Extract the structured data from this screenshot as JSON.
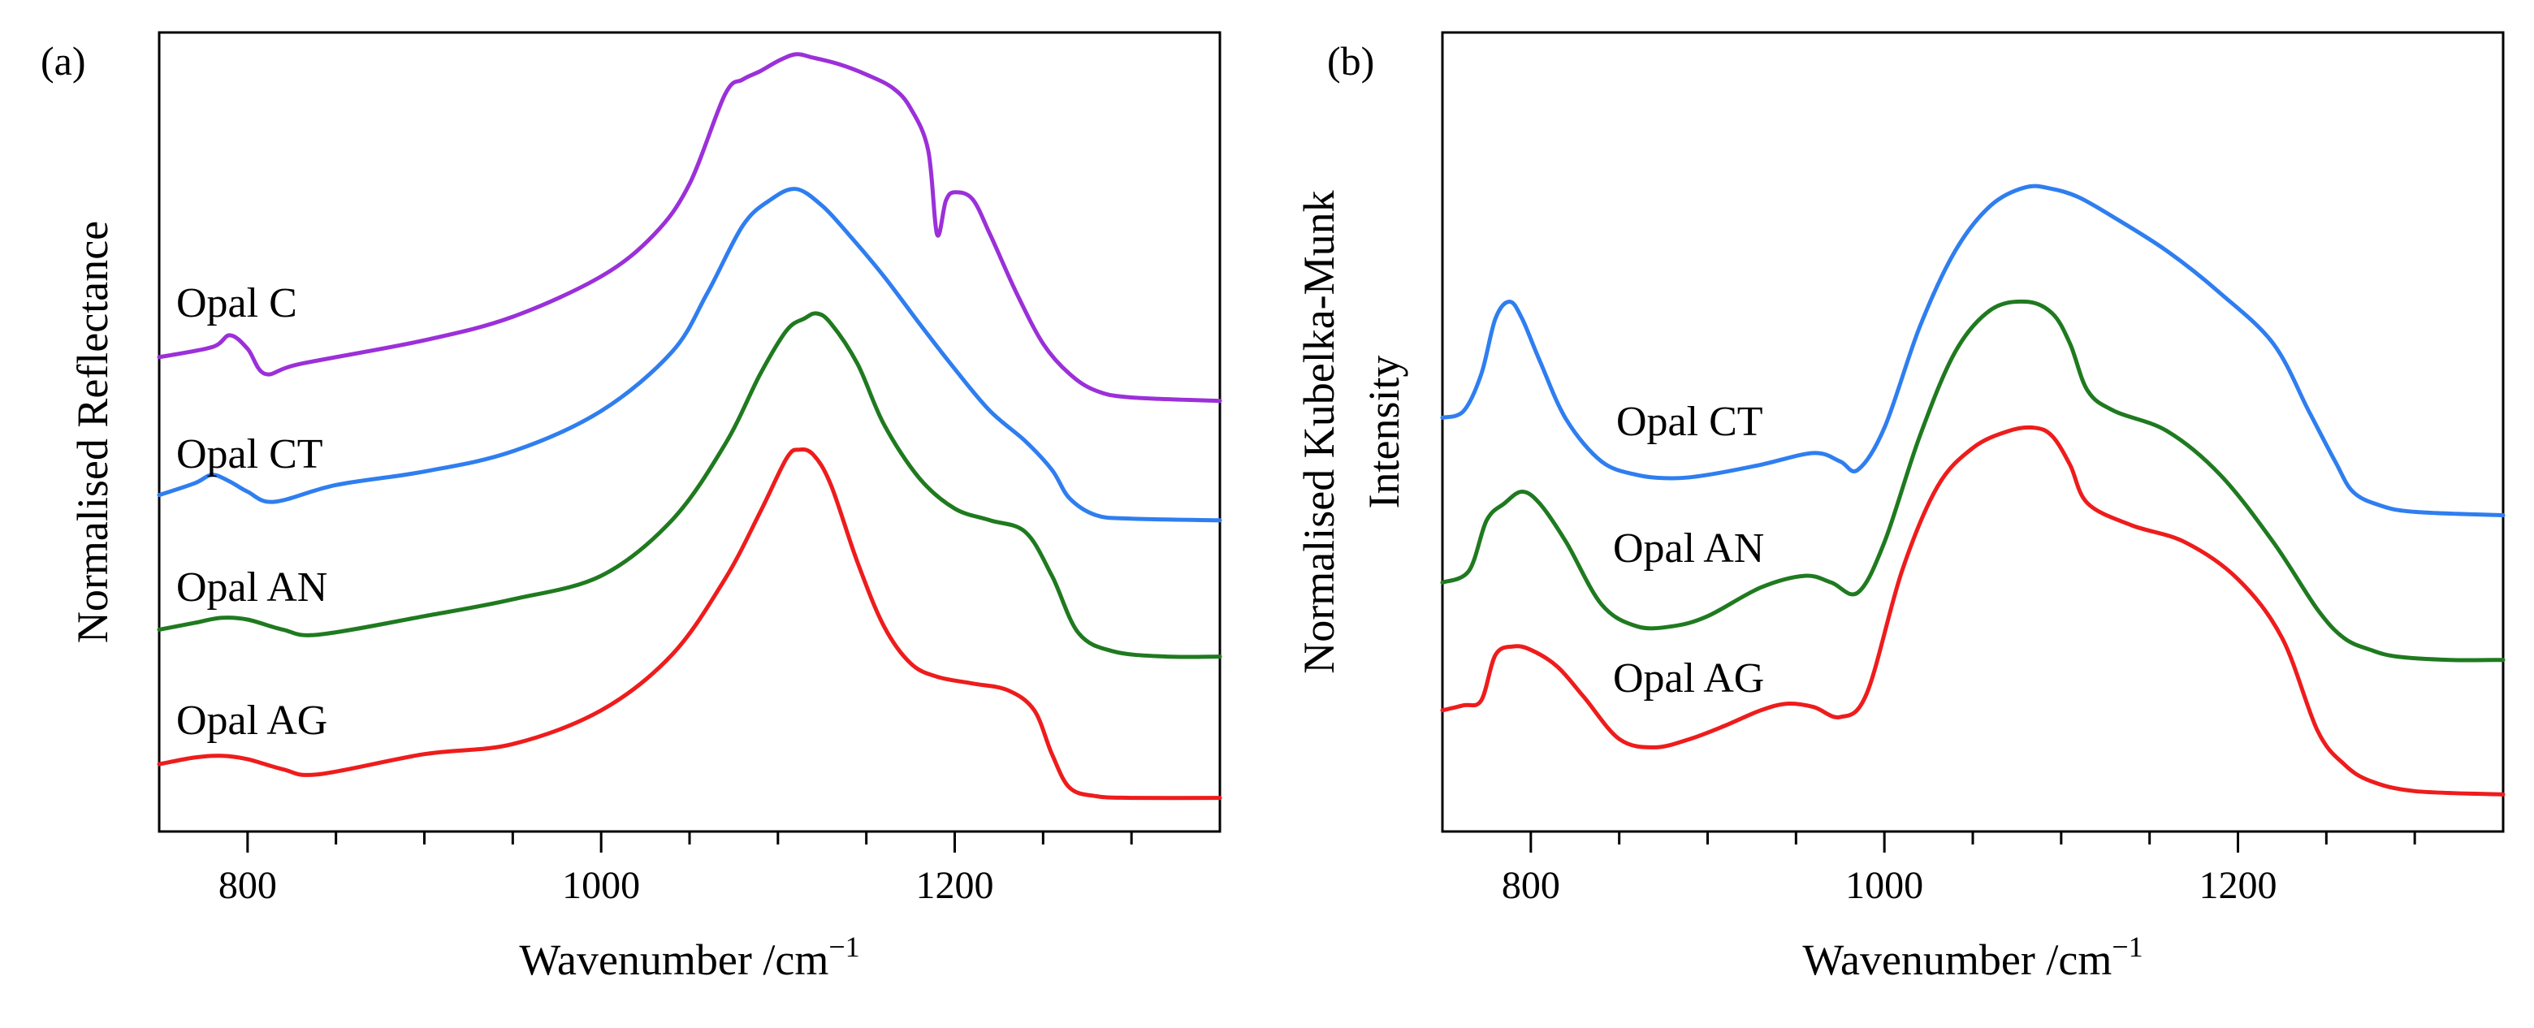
{
  "figure": {
    "panels": [
      {
        "label": "(a)",
        "ylabel": "Normalised Reflectance"
      },
      {
        "label": "(b)",
        "ylabel_lines": [
          "Normalised Kubelka-Munk",
          "Intensity"
        ]
      }
    ],
    "xlabel_main": "Wavenumber /cm",
    "xlabel_sup": "−1"
  },
  "colors": {
    "opal_c": "#9b30d9",
    "opal_ct": "#2f7ef0",
    "opal_an": "#1f7a1f",
    "opal_ag": "#ee1c1c"
  },
  "chart_data": [
    {
      "type": "line",
      "panel": "(a)",
      "title": "",
      "xlabel": "Wavenumber /cm−1",
      "ylabel": "Normalised Reflectance",
      "xlim": [
        750,
        1350
      ],
      "ylim": [
        0,
        4.75
      ],
      "xticks": [
        800,
        1000,
        1200
      ],
      "y_ticks_shown": false,
      "legend": "inline labels at left of each curve",
      "series": [
        {
          "name": "Opal C",
          "color_key": "opal_c",
          "x": [
            750,
            780,
            790,
            800,
            810,
            830,
            900,
            950,
            1000,
            1030,
            1050,
            1070,
            1080,
            1090,
            1100,
            1110,
            1120,
            1135,
            1150,
            1165,
            1175,
            1185,
            1190,
            1195,
            1200,
            1210,
            1220,
            1235,
            1250,
            1265,
            1280,
            1300,
            1350
          ],
          "y": [
            2.82,
            2.88,
            2.95,
            2.87,
            2.72,
            2.78,
            2.92,
            3.06,
            3.3,
            3.55,
            3.85,
            4.38,
            4.47,
            4.52,
            4.58,
            4.62,
            4.6,
            4.56,
            4.5,
            4.42,
            4.3,
            4.05,
            3.55,
            3.75,
            3.8,
            3.76,
            3.55,
            3.2,
            2.9,
            2.72,
            2.62,
            2.58,
            2.56
          ]
        },
        {
          "name": "Opal CT",
          "color_key": "opal_ct",
          "x": [
            750,
            770,
            780,
            790,
            800,
            815,
            850,
            900,
            950,
            1000,
            1040,
            1060,
            1080,
            1095,
            1110,
            1125,
            1140,
            1160,
            1180,
            1200,
            1220,
            1240,
            1255,
            1265,
            1280,
            1300,
            1350
          ],
          "y": [
            2.0,
            2.07,
            2.12,
            2.08,
            2.02,
            1.96,
            2.06,
            2.14,
            2.26,
            2.5,
            2.85,
            3.2,
            3.6,
            3.75,
            3.82,
            3.72,
            3.55,
            3.3,
            3.02,
            2.75,
            2.5,
            2.32,
            2.15,
            1.98,
            1.88,
            1.86,
            1.85
          ]
        },
        {
          "name": "Opal AN",
          "color_key": "opal_an",
          "x": [
            750,
            770,
            785,
            800,
            820,
            840,
            900,
            950,
            1000,
            1040,
            1070,
            1090,
            1105,
            1115,
            1122,
            1130,
            1145,
            1160,
            1180,
            1200,
            1220,
            1240,
            1255,
            1270,
            1290,
            1320,
            1350
          ],
          "y": [
            1.2,
            1.24,
            1.27,
            1.26,
            1.2,
            1.17,
            1.28,
            1.38,
            1.52,
            1.85,
            2.3,
            2.72,
            2.98,
            3.05,
            3.08,
            3.02,
            2.78,
            2.42,
            2.1,
            1.92,
            1.85,
            1.78,
            1.52,
            1.18,
            1.07,
            1.04,
            1.04
          ]
        },
        {
          "name": "Opal AG",
          "color_key": "opal_ag",
          "x": [
            750,
            770,
            785,
            800,
            820,
            840,
            900,
            950,
            1000,
            1040,
            1070,
            1090,
            1105,
            1112,
            1120,
            1130,
            1145,
            1160,
            1175,
            1190,
            1210,
            1230,
            1245,
            1255,
            1265,
            1280,
            1300,
            1350
          ],
          "y": [
            0.4,
            0.44,
            0.45,
            0.43,
            0.37,
            0.34,
            0.46,
            0.52,
            0.72,
            1.05,
            1.5,
            1.9,
            2.22,
            2.27,
            2.24,
            2.06,
            1.6,
            1.22,
            1.0,
            0.92,
            0.88,
            0.84,
            0.72,
            0.46,
            0.26,
            0.21,
            0.2,
            0.2
          ]
        }
      ],
      "annotations": [
        "Opal C",
        "Opal CT",
        "Opal AN",
        "Opal AG"
      ]
    },
    {
      "type": "line",
      "panel": "(b)",
      "title": "",
      "xlabel": "Wavenumber /cm−1",
      "ylabel": "Normalised Kubelka-Munk Intensity",
      "xlim": [
        750,
        1350
      ],
      "ylim": [
        0,
        4.75
      ],
      "xticks": [
        800,
        1000,
        1200
      ],
      "y_ticks_shown": false,
      "legend": "inline labels within each curve's valley",
      "series": [
        {
          "name": "Opal CT",
          "color_key": "opal_ct",
          "x": [
            750,
            762,
            772,
            780,
            788,
            795,
            805,
            820,
            840,
            860,
            880,
            900,
            930,
            960,
            975,
            985,
            1000,
            1020,
            1040,
            1060,
            1080,
            1095,
            1110,
            1130,
            1160,
            1190,
            1220,
            1240,
            1255,
            1265,
            1280,
            1300,
            1350
          ],
          "y": [
            2.46,
            2.5,
            2.72,
            3.05,
            3.15,
            3.05,
            2.8,
            2.45,
            2.2,
            2.12,
            2.1,
            2.12,
            2.18,
            2.25,
            2.2,
            2.15,
            2.4,
            3.0,
            3.45,
            3.72,
            3.83,
            3.82,
            3.77,
            3.65,
            3.45,
            3.2,
            2.9,
            2.5,
            2.2,
            2.02,
            1.94,
            1.9,
            1.88
          ]
        },
        {
          "name": "Opal AN",
          "color_key": "opal_an",
          "x": [
            750,
            765,
            775,
            785,
            795,
            805,
            820,
            840,
            860,
            880,
            900,
            930,
            955,
            970,
            985,
            1000,
            1020,
            1040,
            1060,
            1080,
            1095,
            1105,
            1115,
            1130,
            1160,
            1190,
            1220,
            1245,
            1260,
            1275,
            1290,
            1320,
            1350
          ],
          "y": [
            1.48,
            1.55,
            1.85,
            1.95,
            2.02,
            1.95,
            1.72,
            1.35,
            1.22,
            1.22,
            1.28,
            1.45,
            1.52,
            1.48,
            1.42,
            1.72,
            2.35,
            2.85,
            3.1,
            3.15,
            3.08,
            2.9,
            2.62,
            2.5,
            2.38,
            2.12,
            1.72,
            1.32,
            1.15,
            1.08,
            1.04,
            1.02,
            1.02
          ]
        },
        {
          "name": "Opal AG",
          "color_key": "opal_ag",
          "x": [
            750,
            762,
            772,
            780,
            790,
            800,
            815,
            830,
            850,
            870,
            890,
            910,
            930,
            945,
            960,
            975,
            990,
            1010,
            1030,
            1050,
            1070,
            1085,
            1095,
            1105,
            1115,
            1140,
            1170,
            1200,
            1225,
            1245,
            1260,
            1275,
            1300,
            1350
          ],
          "y": [
            0.72,
            0.75,
            0.78,
            1.05,
            1.1,
            1.08,
            0.98,
            0.8,
            0.55,
            0.5,
            0.55,
            0.63,
            0.72,
            0.76,
            0.74,
            0.68,
            0.82,
            1.55,
            2.05,
            2.28,
            2.38,
            2.4,
            2.35,
            2.18,
            1.95,
            1.82,
            1.72,
            1.5,
            1.15,
            0.6,
            0.4,
            0.3,
            0.24,
            0.22
          ]
        }
      ],
      "annotations": [
        "Opal CT",
        "Opal AN",
        "Opal AG"
      ]
    }
  ]
}
